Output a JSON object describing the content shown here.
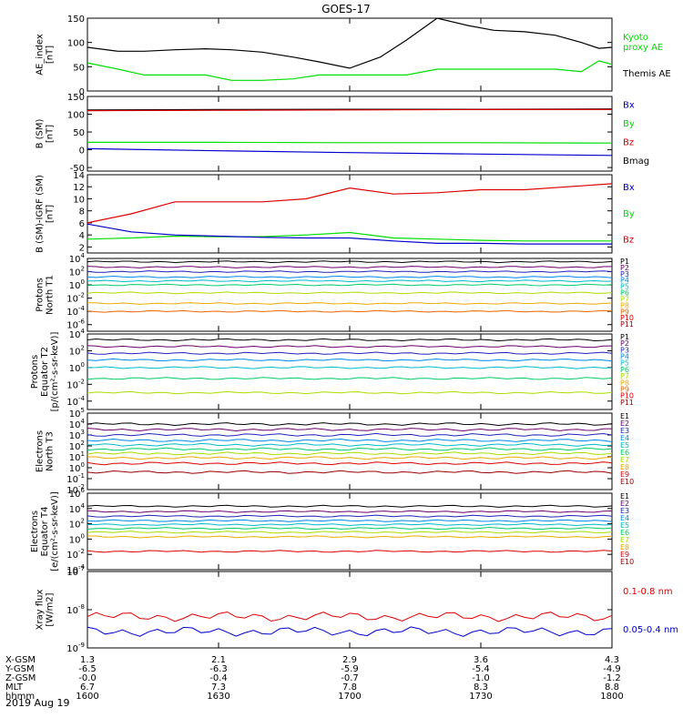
{
  "title": "GOES-17",
  "date": "2019 Aug 19",
  "ephemeris": {
    "labels": [
      "X-GSM",
      "Y-GSM",
      "Z-GSM",
      "MLT",
      "hhmm"
    ],
    "columns": [
      [
        "1.3",
        "-6.5",
        "-0.0",
        "6.7",
        "1600"
      ],
      [
        "2.1",
        "-6.3",
        "-0.4",
        "7.3",
        "1630"
      ],
      [
        "2.9",
        "-5.9",
        "-0.7",
        "7.8",
        "1700"
      ],
      [
        "3.6",
        "-5.4",
        "-1.0",
        "8.3",
        "1730"
      ],
      [
        "4.3",
        "-4.9",
        "-1.2",
        "8.8",
        "1800"
      ]
    ]
  },
  "colors": {
    "black": "#000000",
    "green": "#00dd00",
    "blue": "#0000cc",
    "darkred": "#8b0000",
    "red": "#dd0000"
  },
  "chart_data": [
    {
      "type": "line",
      "id": "ae",
      "ylabel": [
        "AE_index",
        "[nT]"
      ],
      "ylim": [
        0,
        150
      ],
      "yticks": [
        "0",
        "50",
        "100",
        "150"
      ],
      "legend": [
        {
          "name": "Kyoto\nproxy AE",
          "color": "#00dd00"
        },
        {
          "name": "Themis AE",
          "color": "#000000"
        }
      ],
      "x": [
        0,
        7,
        13,
        20,
        27,
        33,
        40,
        47,
        53,
        60,
        67,
        73,
        80,
        87,
        93,
        100,
        107,
        113,
        117,
        120
      ],
      "series": [
        {
          "name": "Themis AE",
          "color": "#000000",
          "values": [
            90,
            82,
            82,
            85,
            87,
            85,
            80,
            70,
            60,
            47,
            70,
            105,
            150,
            135,
            125,
            122,
            115,
            100,
            88,
            90
          ]
        },
        {
          "name": "Kyoto proxy AE",
          "color": "#00dd00",
          "values": [
            58,
            45,
            33,
            33,
            33,
            22,
            22,
            25,
            33,
            33,
            33,
            33,
            45,
            45,
            45,
            45,
            45,
            40,
            62,
            55
          ]
        }
      ]
    },
    {
      "type": "line",
      "id": "bsm",
      "ylabel": [
        "B (SM)",
        "[nT]"
      ],
      "ylim": [
        -60,
        150
      ],
      "yticks": [
        "-50",
        "0",
        "50",
        "100",
        "150"
      ],
      "legend": [
        {
          "name": "Bx",
          "color": "#0000cc"
        },
        {
          "name": "By",
          "color": "#00dd00"
        },
        {
          "name": "Bz",
          "color": "#dd0000"
        },
        {
          "name": "Bmag",
          "color": "#000000"
        }
      ],
      "x": [
        0,
        30,
        60,
        90,
        120
      ],
      "series": [
        {
          "name": "Bmag",
          "color": "#000000",
          "values": [
            112,
            113,
            114,
            114,
            115
          ]
        },
        {
          "name": "Bz",
          "color": "#dd0000",
          "values": [
            110,
            111,
            112,
            113,
            113
          ]
        },
        {
          "name": "By",
          "color": "#00dd00",
          "values": [
            21,
            21,
            20,
            20,
            19
          ]
        },
        {
          "name": "Bx",
          "color": "#0000cc",
          "values": [
            3,
            -3,
            -8,
            -12,
            -16
          ]
        }
      ]
    },
    {
      "type": "line",
      "id": "bigrf",
      "ylabel": [
        "B (SM)-IGRF (SM)",
        "[nT]"
      ],
      "ylim": [
        1,
        14
      ],
      "yticks": [
        "2",
        "4",
        "6",
        "8",
        "10",
        "12",
        "14"
      ],
      "legend": [
        {
          "name": "Bx",
          "color": "#0000cc"
        },
        {
          "name": "By",
          "color": "#00dd00"
        },
        {
          "name": "Bz",
          "color": "#dd0000"
        }
      ],
      "x": [
        0,
        10,
        20,
        30,
        40,
        50,
        60,
        70,
        80,
        90,
        100,
        110,
        120
      ],
      "series": [
        {
          "name": "Bz",
          "color": "#dd0000",
          "values": [
            6,
            7.5,
            9.5,
            9.5,
            9.5,
            10,
            11.8,
            10.8,
            11,
            11.5,
            11.5,
            12,
            12.5
          ]
        },
        {
          "name": "By",
          "color": "#00dd00",
          "values": [
            3.3,
            3.5,
            3.8,
            3.7,
            3.7,
            4,
            4.4,
            3.5,
            3.3,
            3.1,
            3.0,
            3.0,
            3.0
          ]
        },
        {
          "name": "Bx",
          "color": "#0000cc",
          "values": [
            5.8,
            4.5,
            4,
            3.8,
            3.6,
            3.5,
            3.5,
            3,
            2.6,
            2.6,
            2.5,
            2.5,
            2.5
          ]
        }
      ]
    },
    {
      "type": "line",
      "id": "protons-t1",
      "ylabel": [
        "Protons",
        "North T1"
      ],
      "log": true,
      "ylim_exp": [
        -7,
        4
      ],
      "yticks": [
        "10^4",
        "10^2",
        "10^0",
        "10^-2",
        "10^-4",
        "10^-6"
      ],
      "legend": [
        {
          "name": "P1",
          "color": "#000000"
        },
        {
          "name": "P2",
          "color": "#6b006b"
        },
        {
          "name": "P3",
          "color": "#2222bb"
        },
        {
          "name": "P4",
          "color": "#0088ee"
        },
        {
          "name": "P5",
          "color": "#00bbcc"
        },
        {
          "name": "P6",
          "color": "#00cc66"
        },
        {
          "name": "P7",
          "color": "#aadd00"
        },
        {
          "name": "P8",
          "color": "#eeaa00"
        },
        {
          "name": "P9",
          "color": "#ee6600"
        },
        {
          "name": "P10",
          "color": "#dd0000"
        },
        {
          "name": "P11",
          "color": "#990000"
        }
      ],
      "series_exp": [
        3.5,
        2.7,
        2.0,
        1.2,
        0.6,
        0.0,
        -1.2,
        -2.8,
        -4.0
      ]
    },
    {
      "type": "line",
      "id": "protons-t2",
      "ylabel": [
        "Protons",
        "Equator T2",
        "[p/(cm²-s-sr-keV)]"
      ],
      "log": true,
      "ylim_exp": [
        -5,
        4
      ],
      "yticks": [
        "10^4",
        "10^2",
        "10^0",
        "10^-2",
        "10^-4"
      ],
      "legend": [
        {
          "name": "P1",
          "color": "#000000"
        },
        {
          "name": "P2",
          "color": "#6b006b"
        },
        {
          "name": "P3",
          "color": "#2222bb"
        },
        {
          "name": "P4",
          "color": "#0088ee"
        },
        {
          "name": "P5",
          "color": "#00bbcc"
        },
        {
          "name": "P6",
          "color": "#00cc66"
        },
        {
          "name": "P7",
          "color": "#aadd00"
        },
        {
          "name": "P8",
          "color": "#eeaa00"
        },
        {
          "name": "P9",
          "color": "#ee6600"
        },
        {
          "name": "P10",
          "color": "#dd0000"
        },
        {
          "name": "P11",
          "color": "#990000"
        }
      ],
      "series_exp": [
        3.3,
        2.5,
        1.7,
        0.9,
        0.0,
        -1.3,
        -3.0
      ]
    },
    {
      "type": "line",
      "id": "electrons-t3",
      "ylabel": [
        "Electrons",
        "North T3"
      ],
      "log": true,
      "ylim_exp": [
        -2,
        5
      ],
      "yticks": [
        "10^5",
        "10^4",
        "10^3",
        "10^2",
        "10^1",
        "10^0",
        "10^-1",
        "10^-2"
      ],
      "legend": [
        {
          "name": "E1",
          "color": "#000000"
        },
        {
          "name": "E2",
          "color": "#6b006b"
        },
        {
          "name": "E3",
          "color": "#2222bb"
        },
        {
          "name": "E4",
          "color": "#0088ee"
        },
        {
          "name": "E5",
          "color": "#00bbcc"
        },
        {
          "name": "E6",
          "color": "#00cc66"
        },
        {
          "name": "E7",
          "color": "#aadd00"
        },
        {
          "name": "E8",
          "color": "#eeaa00"
        },
        {
          "name": "E9",
          "color": "#dd0000"
        },
        {
          "name": "E10",
          "color": "#990000"
        }
      ],
      "series_exp": [
        4.0,
        3.5,
        3.0,
        2.5,
        2.1,
        1.7,
        1.3,
        0.9,
        0.4,
        -0.4
      ]
    },
    {
      "type": "line",
      "id": "electrons-t4",
      "ylabel": [
        "Electrons",
        "Equator T4",
        "[e/(cm²-s-sr-keV)]"
      ],
      "log": true,
      "ylim_exp": [
        -4,
        6
      ],
      "yticks": [
        "10^6",
        "10^4",
        "10^2",
        "10^0",
        "10^-2",
        "10^-4"
      ],
      "legend": [
        {
          "name": "E1",
          "color": "#000000"
        },
        {
          "name": "E2",
          "color": "#6b006b"
        },
        {
          "name": "E3",
          "color": "#2222bb"
        },
        {
          "name": "E4",
          "color": "#0088ee"
        },
        {
          "name": "E5",
          "color": "#00bbcc"
        },
        {
          "name": "E6",
          "color": "#00cc66"
        },
        {
          "name": "E7",
          "color": "#aadd00"
        },
        {
          "name": "E8",
          "color": "#eeaa00"
        },
        {
          "name": "E9",
          "color": "#dd0000"
        },
        {
          "name": "E10",
          "color": "#990000"
        }
      ],
      "series_exp": [
        4.3,
        3.6,
        3.0,
        2.4,
        1.9,
        1.4,
        0.9,
        0.3,
        -1.6
      ]
    },
    {
      "type": "line",
      "id": "xray",
      "ylabel": [
        "Xray flux",
        "[W/m2]"
      ],
      "log": true,
      "ylim_exp": [
        -9,
        -7
      ],
      "yticks": [
        "10^-7",
        "10^-8",
        "10^-9"
      ],
      "legend": [
        {
          "name": "0.1-0.8 nm",
          "color": "#dd0000"
        },
        {
          "name": "0.05-0.4 nm",
          "color": "#0000cc"
        }
      ],
      "series_exp": [
        -8.18,
        -8.57
      ]
    }
  ],
  "xaxis": {
    "ticks": [
      0,
      30,
      60,
      90,
      120
    ]
  }
}
